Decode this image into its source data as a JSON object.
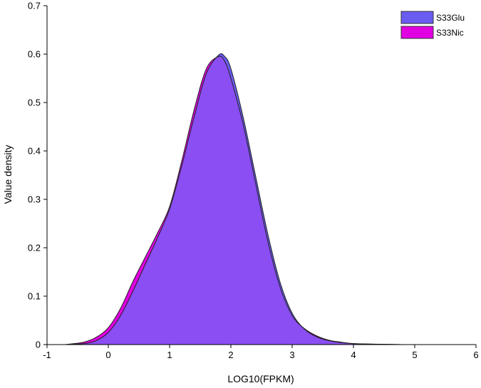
{
  "chart_data": {
    "type": "area",
    "xlabel": "LOG10(FPKM)",
    "ylabel": "Value density",
    "xlim": [
      -1,
      6
    ],
    "ylim": [
      0,
      0.7
    ],
    "xticks": [
      "-1",
      "0",
      "1",
      "2",
      "3",
      "4",
      "5",
      "6"
    ],
    "yticks": [
      "0",
      "0.1",
      "0.2",
      "0.3",
      "0.4",
      "0.5",
      "0.6",
      "0.7"
    ],
    "legend_position": "top-right",
    "series": [
      {
        "name": "S33Glu",
        "color": "#6a5cf0",
        "x": [
          -0.7,
          -0.4,
          -0.2,
          0.0,
          0.2,
          0.4,
          0.6,
          0.8,
          1.0,
          1.2,
          1.4,
          1.6,
          1.8,
          1.9,
          2.0,
          2.2,
          2.4,
          2.6,
          2.8,
          3.0,
          3.2,
          3.4,
          3.6,
          3.8,
          4.0,
          4.3,
          4.8
        ],
        "y": [
          0.0,
          0.002,
          0.008,
          0.025,
          0.06,
          0.11,
          0.165,
          0.22,
          0.28,
          0.37,
          0.47,
          0.56,
          0.598,
          0.595,
          0.57,
          0.47,
          0.35,
          0.23,
          0.13,
          0.065,
          0.032,
          0.016,
          0.008,
          0.004,
          0.002,
          0.001,
          0.0
        ]
      },
      {
        "name": "S33Nic",
        "color": "#e100e1",
        "x": [
          -0.7,
          -0.4,
          -0.2,
          0.0,
          0.2,
          0.4,
          0.6,
          0.8,
          1.0,
          1.2,
          1.4,
          1.6,
          1.8,
          1.9,
          2.0,
          2.2,
          2.4,
          2.6,
          2.8,
          3.0,
          3.2,
          3.4,
          3.6,
          3.8,
          4.0,
          4.3,
          4.8
        ],
        "y": [
          0.0,
          0.005,
          0.015,
          0.035,
          0.075,
          0.13,
          0.18,
          0.23,
          0.285,
          0.38,
          0.485,
          0.57,
          0.595,
          0.585,
          0.55,
          0.455,
          0.335,
          0.215,
          0.12,
          0.06,
          0.033,
          0.018,
          0.009,
          0.005,
          0.002,
          0.001,
          0.0
        ]
      }
    ]
  }
}
